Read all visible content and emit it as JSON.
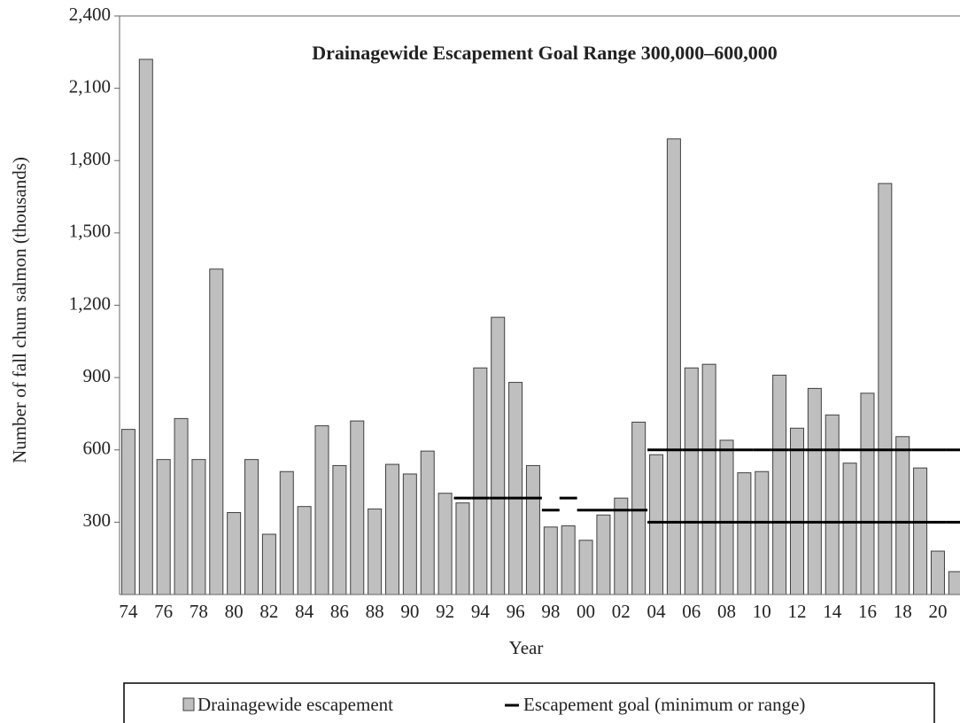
{
  "chart_data": {
    "type": "bar",
    "title": "Drainagewide Escapement Goal Range 300,000–600,000",
    "x_label": "Year",
    "y_label": "Number of fall chum salmon (thousands)",
    "categories": [
      "74",
      null,
      "76",
      null,
      "78",
      null,
      "80",
      null,
      "82",
      null,
      "84",
      null,
      "86",
      null,
      "88",
      null,
      "90",
      null,
      "92",
      null,
      "94",
      null,
      "96",
      null,
      "98",
      null,
      "00",
      null,
      "02",
      null,
      "04",
      null,
      "06",
      null,
      "08",
      null,
      "10",
      null,
      "12",
      null,
      "14",
      null,
      "16",
      null,
      "18",
      null,
      "20",
      null
    ],
    "ylim": [
      0,
      2400
    ],
    "yticks": [
      300,
      600,
      900,
      {
        "value": 1200,
        "label": "1,200"
      },
      {
        "value": 1500,
        "label": "1,500"
      },
      {
        "value": 1800,
        "label": "1,800"
      },
      {
        "value": 2100,
        "label": "2,100"
      },
      {
        "value": 2400,
        "label": "2,400"
      }
    ],
    "series": [
      {
        "name": "Drainagewide escapement",
        "color": "#bfbfbf",
        "values": [
          685,
          2220,
          560,
          730,
          560,
          1350,
          340,
          560,
          250,
          510,
          365,
          700,
          535,
          720,
          355,
          540,
          500,
          595,
          420,
          380,
          940,
          1150,
          880,
          535,
          280,
          285,
          225,
          330,
          400,
          715,
          580,
          1890,
          940,
          955,
          640,
          505,
          510,
          910,
          690,
          855,
          745,
          545,
          835,
          1705,
          655,
          525,
          180,
          95
        ]
      },
      {
        "name": "Escapement goal (minimum or range)",
        "type": "step",
        "color": "#000000",
        "values": [
          null,
          null,
          null,
          null,
          null,
          null,
          null,
          null,
          null,
          null,
          null,
          null,
          null,
          null,
          null,
          null,
          null,
          null,
          null,
          400,
          400,
          400,
          400,
          400,
          350,
          400,
          350,
          350,
          350,
          350,
          300,
          300,
          300,
          300,
          300,
          300,
          300,
          300,
          300,
          300,
          300,
          300,
          300,
          300,
          300,
          300,
          300,
          300
        ],
        "upper": [
          null,
          null,
          null,
          null,
          null,
          null,
          null,
          null,
          null,
          null,
          null,
          null,
          null,
          null,
          null,
          null,
          null,
          null,
          null,
          null,
          null,
          null,
          null,
          null,
          null,
          null,
          null,
          null,
          null,
          null,
          600,
          600,
          600,
          600,
          600,
          600,
          600,
          600,
          600,
          600,
          600,
          600,
          600,
          600,
          600,
          600,
          600,
          600
        ]
      }
    ]
  }
}
